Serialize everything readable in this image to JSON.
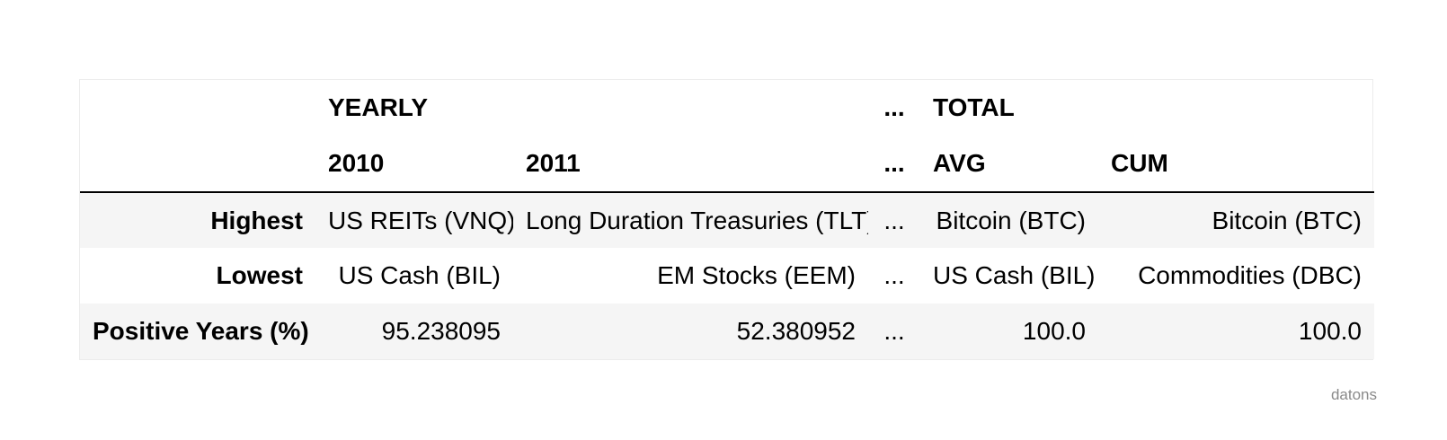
{
  "table": {
    "group_headers": [
      "",
      "YEARLY",
      "",
      "...",
      "TOTAL",
      ""
    ],
    "sub_headers": [
      "",
      "2010",
      "2011",
      "...",
      "AVG",
      "CUM"
    ],
    "rows": [
      {
        "label": "Highest",
        "cells": [
          "US REITs (VNQ)",
          "Long Duration Treasuries (TLT)",
          "...",
          "Bitcoin (BTC)",
          "Bitcoin (BTC)"
        ]
      },
      {
        "label": "Lowest",
        "cells": [
          "US Cash (BIL)",
          "EM Stocks (EEM)",
          "...",
          "US Cash (BIL)",
          "Commodities (DBC)"
        ]
      },
      {
        "label": "Positive Years (%)",
        "cells": [
          "95.238095",
          "52.380952",
          "...",
          "100.0",
          "100.0"
        ]
      }
    ]
  },
  "watermark": "datons"
}
